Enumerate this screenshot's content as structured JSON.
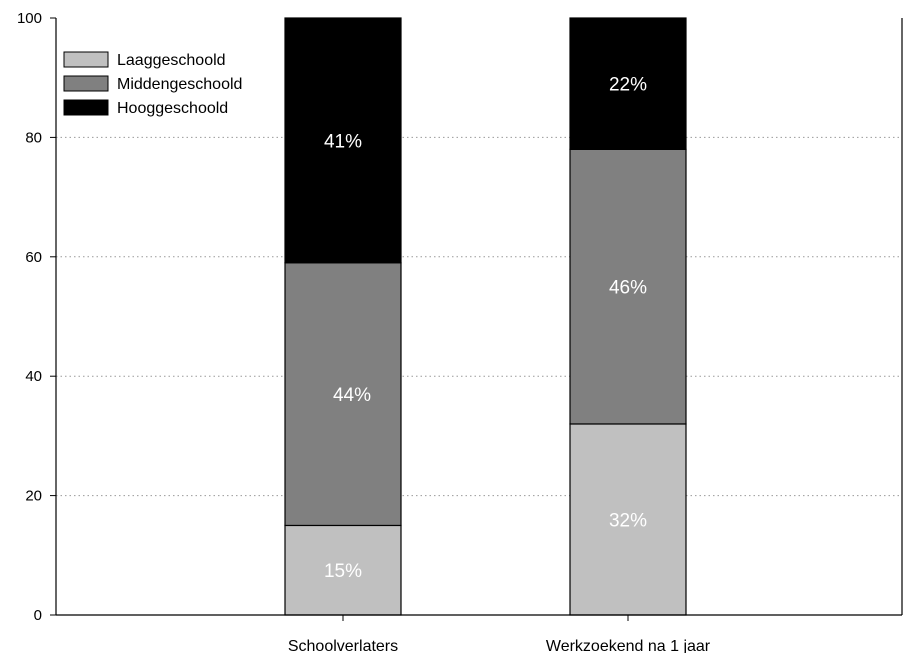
{
  "chart_data": {
    "type": "bar",
    "stacked": true,
    "categories": [
      "Schoolverlaters",
      "Werkzoekend na 1 jaar"
    ],
    "series": [
      {
        "name": "Laaggeschoold",
        "values": [
          15,
          32
        ],
        "labels": [
          "15%",
          "32%"
        ],
        "color": "#c0c0c0"
      },
      {
        "name": "Middengeschoold",
        "values": [
          44,
          46
        ],
        "labels": [
          "44%",
          "46%"
        ],
        "color": "#808080"
      },
      {
        "name": "Hooggeschoold",
        "values": [
          41,
          22
        ],
        "labels": [
          "41%",
          "22%"
        ],
        "color": "#000000"
      }
    ],
    "ylim": [
      0,
      100
    ],
    "yticks": [
      "0",
      "20",
      "40",
      "60",
      "80",
      "100"
    ],
    "grid": "horizontal dotted",
    "legend_position": "top-left",
    "title": "",
    "xlabel": "",
    "ylabel": ""
  }
}
